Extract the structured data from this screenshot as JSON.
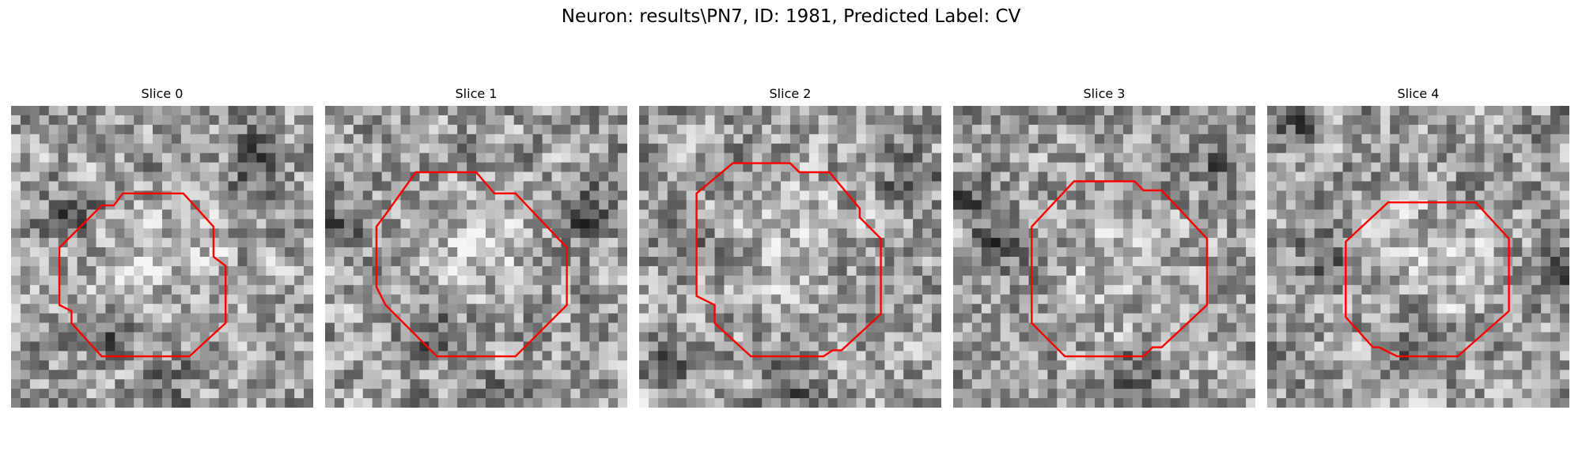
{
  "figure": {
    "title": "Neuron: results\\PN7, ID: 1981, Predicted Label: CV",
    "contour_color": "#ff0000"
  },
  "panels": [
    {
      "title": "Slice 0"
    },
    {
      "title": "Slice 1"
    },
    {
      "title": "Slice 2"
    },
    {
      "title": "Slice 3"
    },
    {
      "title": "Slice 4"
    }
  ]
}
